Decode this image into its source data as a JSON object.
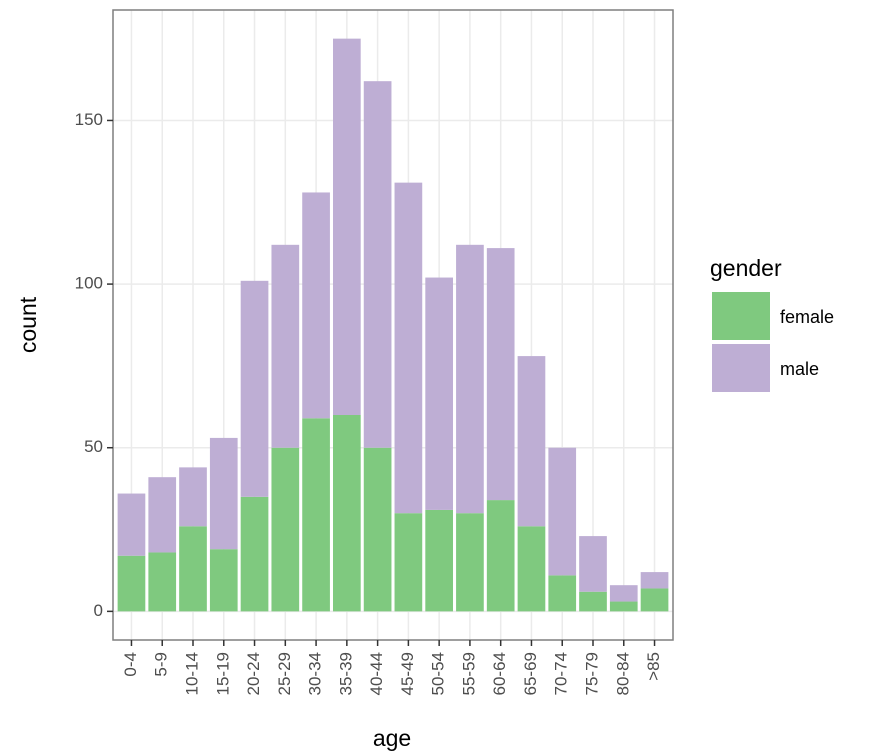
{
  "chart_data": {
    "type": "bar",
    "stacked": true,
    "x_label": "age",
    "y_label": "count",
    "legend_title": "gender",
    "categories": [
      "0-4",
      "5-9",
      "10-14",
      "15-19",
      "20-24",
      "25-29",
      "30-34",
      "35-39",
      "40-44",
      "45-49",
      "50-54",
      "55-59",
      "60-64",
      "65-69",
      "70-74",
      "75-79",
      "80-84",
      ">85"
    ],
    "series": [
      {
        "name": "female",
        "color": "#7fc97f",
        "values": [
          17,
          18,
          26,
          19,
          35,
          50,
          59,
          60,
          50,
          30,
          31,
          30,
          34,
          26,
          11,
          6,
          3,
          7
        ]
      },
      {
        "name": "male",
        "color": "#beaed4",
        "values": [
          19,
          23,
          18,
          34,
          66,
          62,
          69,
          115,
          112,
          101,
          71,
          82,
          77,
          52,
          39,
          17,
          5,
          5
        ]
      }
    ],
    "ylim": [
      -8.75,
      183.75
    ],
    "yticks": [
      0,
      50,
      100,
      150
    ],
    "grid": true
  }
}
